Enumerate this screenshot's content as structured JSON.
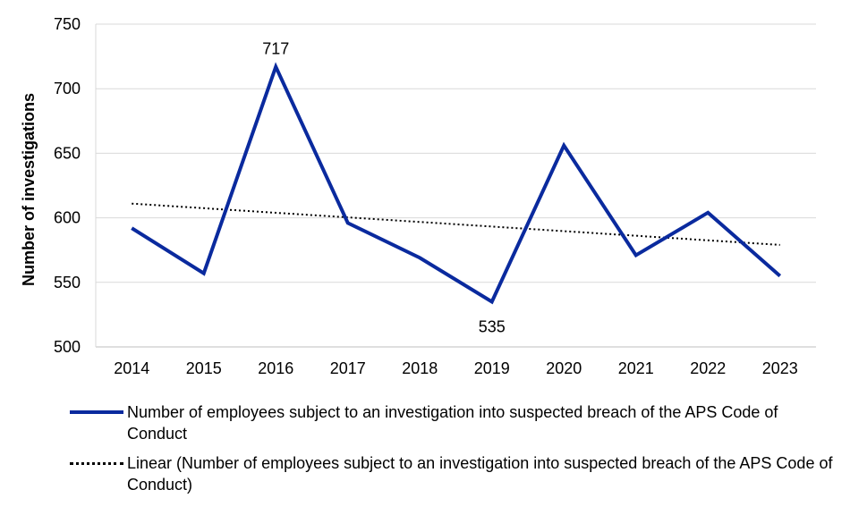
{
  "chart_data": {
    "type": "line",
    "categories": [
      "2014",
      "2015",
      "2016",
      "2017",
      "2018",
      "2019",
      "2020",
      "2021",
      "2022",
      "2023"
    ],
    "series": [
      {
        "name": "Number of employees subject to an investigation into suspected breach of the APS Code of Conduct",
        "values": [
          592,
          557,
          717,
          596,
          569,
          535,
          656,
          571,
          604,
          555
        ],
        "color": "#0a2a9e",
        "style": "solid"
      }
    ],
    "trendline": {
      "name": "Linear (Number of employees subject to an investigation into suspected breach of the APS Code of Conduct)",
      "type": "linear",
      "start": 611,
      "end": 579,
      "color": "#000000",
      "style": "dotted"
    },
    "data_labels": [
      {
        "category": "2016",
        "text": "717",
        "position": "above"
      },
      {
        "category": "2019",
        "text": "535",
        "position": "below"
      }
    ],
    "ylabel": "Number of investigations",
    "xlabel": "",
    "ylim": [
      500,
      750
    ],
    "yticks": [
      "500",
      "550",
      "600",
      "650",
      "700",
      "750"
    ],
    "grid": true,
    "legend_position": "bottom"
  }
}
